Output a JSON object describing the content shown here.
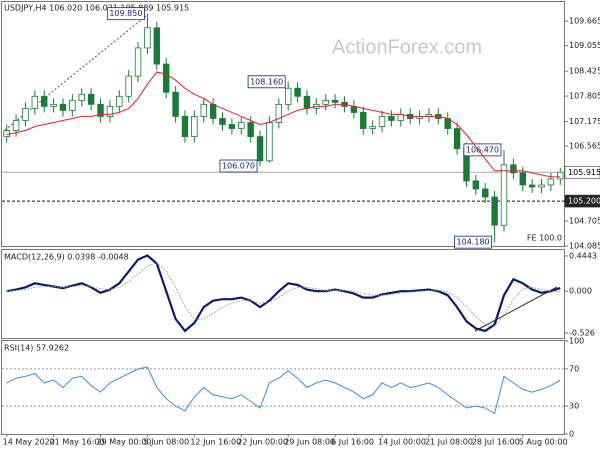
{
  "chart_data": [
    {
      "type": "candlestick",
      "title": "USDJPY,H4 106.020 106.021 105.889 105.915",
      "watermark": "ActionForex.com",
      "note": "FE 100.0",
      "color": "#1b7a3a",
      "categories": [
        "14 May 2020",
        null,
        null,
        null,
        null,
        "21 May 16:00",
        null,
        null,
        null,
        null,
        "29 May 00:00",
        null,
        null,
        null,
        null,
        "5 Jun 08:00",
        null,
        null,
        null,
        null,
        "12 Jun 16:00",
        null,
        null,
        null,
        null,
        "22 Jun 00:00",
        null,
        null,
        null,
        null,
        "29 Jun 08:00",
        null,
        null,
        null,
        null,
        "6 Jul 16:00",
        null,
        null,
        null,
        null,
        "14 Jul 00:00",
        null,
        null,
        null,
        null,
        "21 Jul 08:00",
        null,
        null,
        null,
        null,
        "28 Jul 16:00",
        null,
        null,
        null,
        null,
        "5 Aug 00:00",
        null,
        null,
        null,
        null
      ],
      "open": [
        106.8,
        106.95,
        107.2,
        107.5,
        107.8,
        107.55,
        107.6,
        107.45,
        107.7,
        107.85,
        107.6,
        107.3,
        107.55,
        107.8,
        108.3,
        109.0,
        109.5,
        108.6,
        107.9,
        107.3,
        106.8,
        107.3,
        107.6,
        107.25,
        107.1,
        107.0,
        107.15,
        106.8,
        106.2,
        107.15,
        107.6,
        108.0,
        107.8,
        107.5,
        107.6,
        107.7,
        107.65,
        107.55,
        107.4,
        107.0,
        107.05,
        107.3,
        107.2,
        107.35,
        107.25,
        107.3,
        107.35,
        107.25,
        107.0,
        106.5,
        105.7,
        105.5,
        105.3,
        104.6,
        106.1,
        105.9,
        105.6,
        105.55,
        105.6,
        105.75
      ],
      "high": [
        107.1,
        107.35,
        107.65,
        107.95,
        107.95,
        107.75,
        107.75,
        107.85,
        108.0,
        108.0,
        107.75,
        107.7,
        107.95,
        108.45,
        109.15,
        109.85,
        109.65,
        108.75,
        108.05,
        107.45,
        107.45,
        107.75,
        107.75,
        107.4,
        107.25,
        107.3,
        107.3,
        106.95,
        107.3,
        107.75,
        108.16,
        108.15,
        107.95,
        107.75,
        107.85,
        107.85,
        107.8,
        107.7,
        107.55,
        107.2,
        107.45,
        107.45,
        107.5,
        107.5,
        107.45,
        107.5,
        107.5,
        107.4,
        107.15,
        106.65,
        105.85,
        105.65,
        105.45,
        106.47,
        106.25,
        106.05,
        105.75,
        105.75,
        105.9,
        106.02
      ],
      "low": [
        106.65,
        106.8,
        107.05,
        107.35,
        107.4,
        107.4,
        107.3,
        107.3,
        107.55,
        107.45,
        107.15,
        107.15,
        107.4,
        107.65,
        108.15,
        108.85,
        108.45,
        107.75,
        107.15,
        106.65,
        106.65,
        107.15,
        107.1,
        106.95,
        106.85,
        106.85,
        106.65,
        106.07,
        106.15,
        107.0,
        107.45,
        107.65,
        107.35,
        107.35,
        107.45,
        107.5,
        107.4,
        107.25,
        106.85,
        106.85,
        106.9,
        107.05,
        107.05,
        107.1,
        107.1,
        107.15,
        107.1,
        106.85,
        106.35,
        105.55,
        105.35,
        105.15,
        104.18,
        104.45,
        105.75,
        105.45,
        105.4,
        105.4,
        105.45,
        105.6
      ],
      "close": [
        106.95,
        107.2,
        107.5,
        107.8,
        107.55,
        107.6,
        107.45,
        107.7,
        107.85,
        107.6,
        107.3,
        107.55,
        107.8,
        108.3,
        109.0,
        109.5,
        108.6,
        107.9,
        107.3,
        106.8,
        107.3,
        107.6,
        107.25,
        107.1,
        107.0,
        107.15,
        106.8,
        106.2,
        107.15,
        107.6,
        108.0,
        107.8,
        107.5,
        107.6,
        107.7,
        107.65,
        107.55,
        107.4,
        107.0,
        107.05,
        107.3,
        107.2,
        107.35,
        107.25,
        107.3,
        107.35,
        107.25,
        107.0,
        106.5,
        105.7,
        105.5,
        105.3,
        104.6,
        106.1,
        105.9,
        105.6,
        105.55,
        105.6,
        105.75,
        105.915
      ],
      "series": [
        {
          "color": "#e8202a",
          "values": [
            106.85,
            106.9,
            106.95,
            107.05,
            107.1,
            107.15,
            107.2,
            107.25,
            107.3,
            107.3,
            107.35,
            107.35,
            107.4,
            107.5,
            107.75,
            108.1,
            108.4,
            108.35,
            108.2,
            108.0,
            107.85,
            107.75,
            107.6,
            107.5,
            107.4,
            107.3,
            107.2,
            107.1,
            107.15,
            107.25,
            107.35,
            107.45,
            107.5,
            107.55,
            107.55,
            107.6,
            107.6,
            107.55,
            107.5,
            107.45,
            107.4,
            107.35,
            107.35,
            107.3,
            107.3,
            107.3,
            107.3,
            107.25,
            107.1,
            106.85,
            106.55,
            106.25,
            105.95,
            105.95,
            105.95,
            105.95,
            105.9,
            105.85,
            105.8,
            105.8
          ]
        }
      ],
      "annotations": [
        {
          "label": "109.850",
          "value": 109.85
        },
        {
          "label": "108.160",
          "value": 108.16
        },
        {
          "label": "106.070",
          "value": 106.07
        },
        {
          "label": "106.470",
          "value": 106.47
        },
        {
          "label": "104.180",
          "value": 104.18
        }
      ],
      "last_price": 105.915,
      "hline": {
        "value": 105.2,
        "label": "105.200"
      },
      "ylim": [
        104.085,
        110.14
      ],
      "yticks": [
        109.665,
        109.055,
        108.425,
        107.805,
        107.175,
        106.565,
        104.705,
        104.085
      ]
    },
    {
      "type": "line",
      "title": "MACD(12,26,9) 0.0398 -0.0048",
      "series": [
        {
          "color": "#0a1a6e",
          "values": [
            0.0,
            0.02,
            0.05,
            0.1,
            0.08,
            0.06,
            0.04,
            0.07,
            0.1,
            0.05,
            -0.02,
            0.02,
            0.1,
            0.25,
            0.4,
            0.45,
            0.35,
            0.0,
            -0.35,
            -0.5,
            -0.4,
            -0.2,
            -0.12,
            -0.1,
            -0.1,
            -0.08,
            -0.12,
            -0.2,
            -0.12,
            0.0,
            0.1,
            0.08,
            0.02,
            0.0,
            0.0,
            0.02,
            0.0,
            -0.03,
            -0.08,
            -0.08,
            -0.04,
            -0.02,
            0.0,
            0.0,
            0.01,
            0.02,
            0.0,
            -0.05,
            -0.2,
            -0.38,
            -0.47,
            -0.5,
            -0.42,
            -0.05,
            0.15,
            0.1,
            0.02,
            -0.02,
            0.0,
            0.0398
          ]
        },
        {
          "color": "#9a9a9a",
          "dashed": true,
          "values": [
            0.0,
            0.01,
            0.02,
            0.05,
            0.06,
            0.06,
            0.05,
            0.06,
            0.07,
            0.06,
            0.03,
            0.02,
            0.05,
            0.12,
            0.22,
            0.32,
            0.36,
            0.25,
            0.05,
            -0.2,
            -0.35,
            -0.35,
            -0.28,
            -0.2,
            -0.15,
            -0.12,
            -0.12,
            -0.15,
            -0.14,
            -0.08,
            0.0,
            0.05,
            0.05,
            0.03,
            0.01,
            0.01,
            0.01,
            0.0,
            -0.03,
            -0.05,
            -0.05,
            -0.04,
            -0.02,
            -0.01,
            0.0,
            0.01,
            0.01,
            -0.01,
            -0.08,
            -0.2,
            -0.32,
            -0.42,
            -0.44,
            -0.3,
            -0.1,
            0.03,
            0.05,
            0.02,
            0.0,
            -0.0048
          ]
        }
      ],
      "ylim": [
        -0.59,
        0.52
      ],
      "yticks": [
        0.4443,
        {
          "value": 0,
          "label": "0.000"
        },
        -0.526
      ]
    },
    {
      "type": "line",
      "title": "RSI(14) 57.9262",
      "series": [
        {
          "color": "#3a8ee6",
          "values": [
            55,
            60,
            62,
            65,
            55,
            58,
            50,
            60,
            62,
            52,
            45,
            55,
            60,
            65,
            70,
            72,
            50,
            38,
            30,
            25,
            40,
            50,
            42,
            40,
            38,
            42,
            35,
            28,
            55,
            60,
            68,
            60,
            50,
            55,
            58,
            55,
            50,
            45,
            38,
            42,
            55,
            50,
            55,
            50,
            52,
            55,
            50,
            42,
            35,
            28,
            30,
            28,
            22,
            62,
            55,
            48,
            45,
            48,
            52,
            57.9262
          ]
        }
      ],
      "ylim": [
        0,
        100
      ],
      "yticks": [
        100,
        70,
        30,
        0
      ]
    }
  ]
}
